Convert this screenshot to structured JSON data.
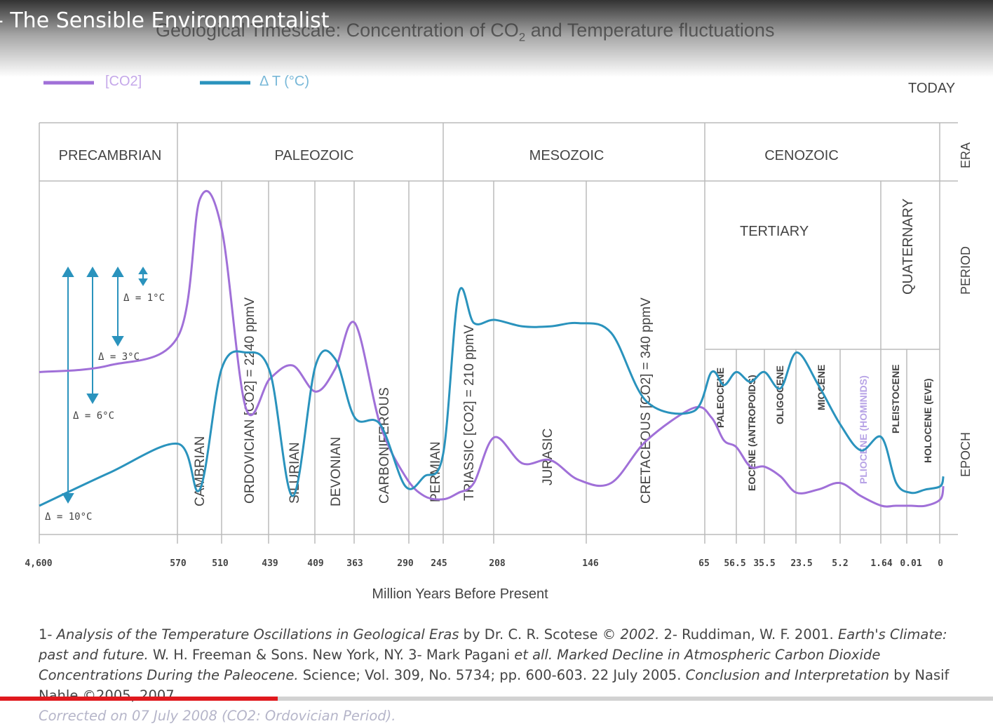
{
  "video": {
    "channel_title": "- The Sensible Environmentalist",
    "progress_fraction": 0.28
  },
  "chart_data": {
    "type": "line",
    "title": "Geological Timescale: Concentration of CO2 and Temperature fluctuations",
    "title_parts": [
      "Geological Timescale: Concentration of CO",
      "2",
      " and Temperature fluctuations"
    ],
    "xlabel": "Million Years Before Present",
    "ylabel": "",
    "x_ticks": [
      "4,600",
      "570",
      "510",
      "439",
      "409",
      "363",
      "290",
      "245",
      "208",
      "146",
      "65",
      "56.5",
      "35.5",
      "23.5",
      "5.2",
      "1.64",
      "0.01",
      "0"
    ],
    "today_label": "TODAY",
    "legend": [
      {
        "label": "[CO2]",
        "color": "#a070d8"
      },
      {
        "label": "Δ T (°C)",
        "color": "#2a93bd"
      }
    ],
    "row_labels": [
      "ERA",
      "PERIOD",
      "EPOCH"
    ],
    "eras": [
      "PRECAMBRIAN",
      "PALEOZOIC",
      "MESOZOIC",
      "CENOZOIC"
    ],
    "periods": [
      "CAMBRIAN",
      "ORDOVICIAN [CO2] = 2240 ppmV",
      "SILURIAN",
      "DEVONIAN",
      "CARBONIFEROUS",
      "PERMIAN",
      "TRIASSIC [CO2] = 210 ppmV",
      "JURASIC",
      "CRETACEOUS [CO2] = 340 ppmV",
      "TERTIARY",
      "QUATERNARY"
    ],
    "epochs": [
      "PALEOCENE",
      "EOCENE (ANTROPOIDS)",
      "OLIGOCENE",
      "MIOCENE",
      "PLIOCENE (HOMINIDS)",
      "PLEISTOCENE",
      "HOLOCENE (EVE)"
    ],
    "temperature_scale": [
      "Δ = 1°C",
      "Δ = 3°C",
      "Δ = 6°C",
      "Δ = 10°C"
    ],
    "series": [
      {
        "name": "[CO2]",
        "color": "#a070d8",
        "points": [
          [
            0,
            4.4
          ],
          [
            0.5,
            4.6
          ],
          [
            1,
            5.5
          ],
          [
            1.5,
            9.7
          ],
          [
            2,
            8.8
          ],
          [
            2.5,
            3.3
          ],
          [
            3,
            4.2
          ],
          [
            3.5,
            4.6
          ],
          [
            4,
            3.8
          ],
          [
            4.5,
            4.5
          ],
          [
            5,
            5.9
          ],
          [
            5.5,
            2.8
          ],
          [
            6,
            1.2
          ],
          [
            6.5,
            0.6
          ],
          [
            7,
            0.5
          ],
          [
            7.3,
            0.7
          ],
          [
            7.6,
            1.0
          ],
          [
            8,
            2.4
          ],
          [
            8.3,
            1.6
          ],
          [
            8.6,
            1.7
          ],
          [
            8.9,
            1.1
          ],
          [
            9.2,
            1.0
          ],
          [
            9.5,
            2.3
          ],
          [
            9.9,
            3.3
          ],
          [
            10.2,
            3.0
          ],
          [
            10.6,
            2.3
          ],
          [
            11,
            2.1
          ],
          [
            11.5,
            1.5
          ],
          [
            12,
            1.5
          ],
          [
            12.5,
            1.2
          ],
          [
            13,
            0.7
          ],
          [
            13.5,
            0.8
          ],
          [
            14,
            1.0
          ],
          [
            14.5,
            0.6
          ],
          [
            15,
            0.3
          ],
          [
            15.5,
            0.3
          ],
          [
            16,
            0.3
          ],
          [
            16.5,
            0.3
          ],
          [
            17,
            0.5
          ],
          [
            17.1,
            0.9
          ]
        ]
      },
      {
        "name": "Δ T (°C)",
        "color": "#2a93bd",
        "points": [
          [
            0,
            0.3
          ],
          [
            0.5,
            1.3
          ],
          [
            1,
            2.2
          ],
          [
            1.5,
            0.8
          ],
          [
            2,
            4.5
          ],
          [
            2.5,
            5.0
          ],
          [
            3,
            4.4
          ],
          [
            3.5,
            0.6
          ],
          [
            4,
            4.6
          ],
          [
            4.5,
            4.8
          ],
          [
            5,
            3.0
          ],
          [
            5.5,
            2.8
          ],
          [
            6,
            0.9
          ],
          [
            6.5,
            1.2
          ],
          [
            7,
            1.9
          ],
          [
            7.3,
            6.8
          ],
          [
            7.6,
            5.9
          ],
          [
            8,
            6.0
          ],
          [
            8.3,
            5.8
          ],
          [
            8.6,
            5.8
          ],
          [
            8.9,
            5.9
          ],
          [
            9.2,
            5.6
          ],
          [
            9.5,
            3.5
          ],
          [
            9.9,
            3.2
          ],
          [
            10.2,
            4.4
          ],
          [
            10.6,
            4.0
          ],
          [
            11,
            4.4
          ],
          [
            11.5,
            4.1
          ],
          [
            12,
            4.4
          ],
          [
            12.5,
            3.9
          ],
          [
            13,
            5.0
          ],
          [
            13.5,
            4.0
          ],
          [
            14,
            2.8
          ],
          [
            14.5,
            2.0
          ],
          [
            15,
            2.4
          ],
          [
            15.5,
            1.0
          ],
          [
            16,
            0.7
          ],
          [
            16.5,
            0.8
          ],
          [
            17,
            0.9
          ],
          [
            17.1,
            1.2
          ]
        ]
      }
    ]
  },
  "footnote": {
    "ref1_prefix": "1- ",
    "ref1_title": "Analysis of the Temperature Oscillations in Geological Eras",
    "ref1_author": " by Dr. C. R. Scotese © ",
    "ref1_year": "2002.",
    "ref2_authors": " 2- Ruddiman, W. F. 2001. ",
    "ref2_title": "Earth's Climate: past and future.",
    "ref2_pub": " W. H. Freeman & Sons. New York, NY. 3- Mark Pagani ",
    "ref3_etal": "et all.",
    "ref3_title": " Marked Decline in Atmospheric Carbon Dioxide Concentrations During the Paleocene.",
    "ref3_pub": " Science; Vol. 309, No. 5734; pp. 600-603. 22 July 2005. ",
    "conclusion": "Conclusion and Interpretation",
    "conclusion_author": " by Nasif Nahle ©2005, 2007.",
    "corrected": "Corrected on 07 July 2008 (CO2: Ordovician Period)."
  }
}
